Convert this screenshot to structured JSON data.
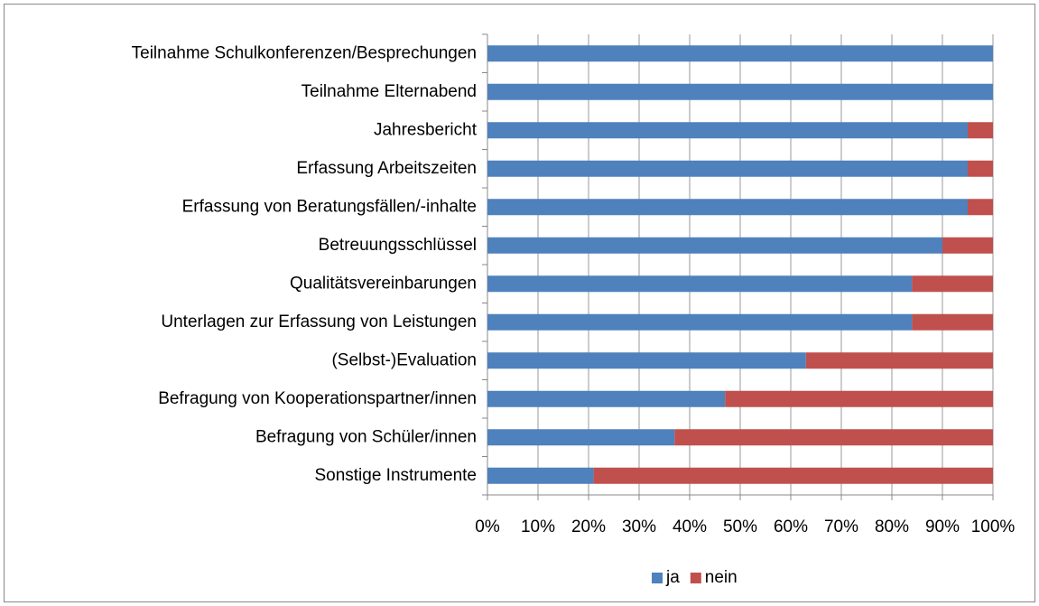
{
  "chart_data": {
    "type": "bar",
    "orientation": "horizontal",
    "stacked": true,
    "categories": [
      "Teilnahme Schulkonferenzen/Besprechungen",
      "Teilnahme Elternabend",
      "Jahresbericht",
      "Erfassung Arbeitszeiten",
      "Erfassung von Beratungsfällen/-inhalte",
      "Betreuungsschlüssel",
      "Qualitätsvereinbarungen",
      "Unterlagen zur Erfassung von Leistungen",
      "(Selbst-)Evaluation",
      "Befragung von Kooperationspartner/innen",
      "Befragung von Schüler/innen",
      "Sonstige Instrumente"
    ],
    "series": [
      {
        "name": "ja",
        "color": "#4f81bd",
        "values": [
          100,
          100,
          95,
          95,
          95,
          90,
          84,
          84,
          63,
          47,
          37,
          21
        ]
      },
      {
        "name": "nein",
        "color": "#c0504d",
        "values": [
          0,
          0,
          5,
          5,
          5,
          10,
          16,
          16,
          37,
          53,
          63,
          79
        ]
      }
    ],
    "xlim": [
      0,
      100
    ],
    "xticks": [
      {
        "value": 0,
        "label": "0%"
      },
      {
        "value": 10,
        "label": "10%"
      },
      {
        "value": 20,
        "label": "20%"
      },
      {
        "value": 30,
        "label": "30%"
      },
      {
        "value": 40,
        "label": "40%"
      },
      {
        "value": 50,
        "label": "50%"
      },
      {
        "value": 60,
        "label": "60%"
      },
      {
        "value": 70,
        "label": "70%"
      },
      {
        "value": 80,
        "label": "80%"
      },
      {
        "value": 90,
        "label": "90%"
      },
      {
        "value": 100,
        "label": "100%"
      }
    ],
    "grid": true,
    "legend": "bottom"
  }
}
